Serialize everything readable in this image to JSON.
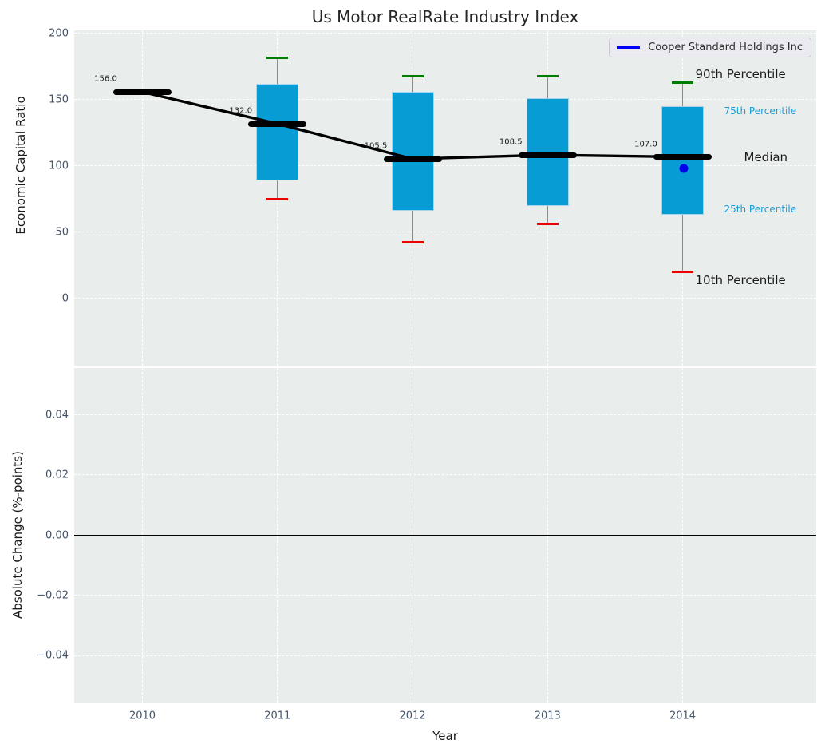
{
  "chart_data": {
    "type": "boxplot",
    "title": "Us Motor RealRate Industry Index",
    "xlabel": "Year",
    "legend": {
      "label": "Cooper Standard Holdings Inc",
      "line_color": "#0000ff"
    },
    "top_panel": {
      "ylabel": "Economic Capital Ratio",
      "yticks": [
        0,
        50,
        100,
        150,
        200
      ],
      "ylim": [
        -50.5,
        202.5
      ],
      "grid": true,
      "years": [
        "2010",
        "2011",
        "2012",
        "2013",
        "2014"
      ],
      "boxes": [
        {
          "year": "2010",
          "p10": null,
          "p25": null,
          "median": 156.0,
          "p75": null,
          "p90": null,
          "median_label": "156.0"
        },
        {
          "year": "2011",
          "p10": 75,
          "p25": 89,
          "median": 132.0,
          "p75": 162,
          "p90": 182,
          "median_label": "132.0"
        },
        {
          "year": "2012",
          "p10": 42.5,
          "p25": 66.5,
          "median": 105.5,
          "p75": 156,
          "p90": 168,
          "median_label": "105.5"
        },
        {
          "year": "2013",
          "p10": 56.5,
          "p25": 70,
          "median": 108.5,
          "p75": 151,
          "p90": 168,
          "median_label": "108.5"
        },
        {
          "year": "2014",
          "p10": 20.5,
          "p25": 63.5,
          "median": 107.0,
          "p75": 145.5,
          "p90": 163,
          "median_label": "107.0"
        }
      ],
      "median_series": [
        156.0,
        132.0,
        105.5,
        108.5,
        107.0
      ],
      "company_point": {
        "name": "Cooper Standard Holdings Inc",
        "year": "2014",
        "value": 98
      },
      "percentile_labels": [
        {
          "text": "90th Percentile",
          "attach": "p90",
          "size": "large"
        },
        {
          "text": "75th Percentile",
          "attach": "p75",
          "size": "small"
        },
        {
          "text": "Median",
          "attach": "median",
          "size": "large"
        },
        {
          "text": "25th Percentile",
          "attach": "p25",
          "size": "small"
        },
        {
          "text": "10th Percentile",
          "attach": "p10",
          "size": "large"
        }
      ]
    },
    "bottom_panel": {
      "ylabel": "Absolute Change (%-points)",
      "ytick_labels": [
        "0.04",
        "0.02",
        "0.00",
        "−0.02",
        "−0.04"
      ],
      "ytick_values": [
        0.04,
        0.02,
        0.0,
        -0.02,
        -0.04
      ],
      "ylim": [
        -0.0555,
        0.0555
      ],
      "grid": true,
      "zero_line": 0.0
    },
    "colors": {
      "plot_bg": "#e9eeed",
      "box_fill": "#089cd4",
      "box_edge": "#a6d4ea",
      "median_line": "#000000",
      "whisker": "#8a8a8a",
      "cap_top": "#007d00",
      "cap_bottom": "#ea0000",
      "company_dot": "#0000ee",
      "legend_line": "#0000ff",
      "tick_label": "#44546a",
      "percentile_small": "#199bd7",
      "grid_line": "#ffffff"
    }
  }
}
